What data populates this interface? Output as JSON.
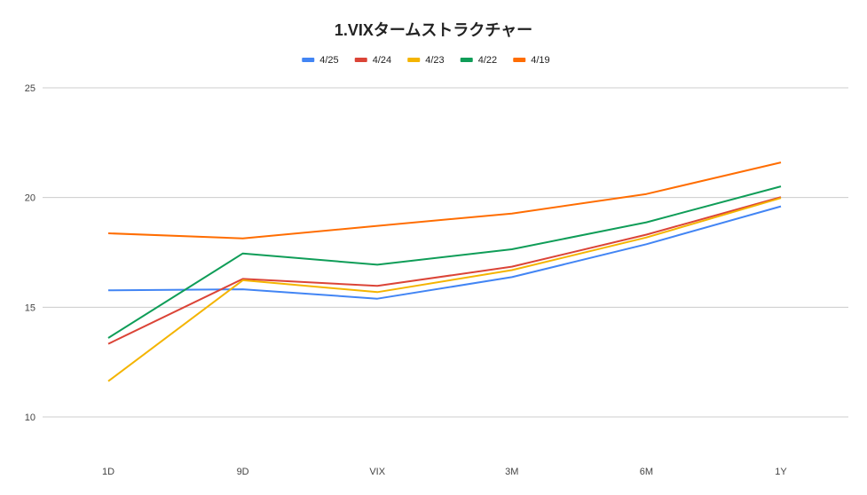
{
  "chart_data": {
    "type": "line",
    "title": "1.VIXタームストラクチャー",
    "categories": [
      "1D",
      "9D",
      "VIX",
      "3M",
      "6M",
      "1Y"
    ],
    "yticks": [
      10,
      15,
      20,
      25
    ],
    "ylim": [
      10,
      25
    ],
    "grid": true,
    "legend_position": "top",
    "series": [
      {
        "name": "4/25",
        "color": "#4285f4",
        "values": [
          15.77,
          15.82,
          15.39,
          16.37,
          17.87,
          19.6
        ]
      },
      {
        "name": "4/24",
        "color": "#db4437",
        "values": [
          13.33,
          16.29,
          15.97,
          16.85,
          18.31,
          20.02
        ]
      },
      {
        "name": "4/23",
        "color": "#f4b400",
        "values": [
          11.63,
          16.23,
          15.69,
          16.69,
          18.18,
          19.98
        ]
      },
      {
        "name": "4/22",
        "color": "#0f9d58",
        "values": [
          13.6,
          17.45,
          16.94,
          17.64,
          18.87,
          20.51
        ]
      },
      {
        "name": "4/19",
        "color": "#ff6d01",
        "values": [
          18.37,
          18.14,
          18.71,
          19.27,
          20.16,
          21.6
        ]
      }
    ]
  }
}
